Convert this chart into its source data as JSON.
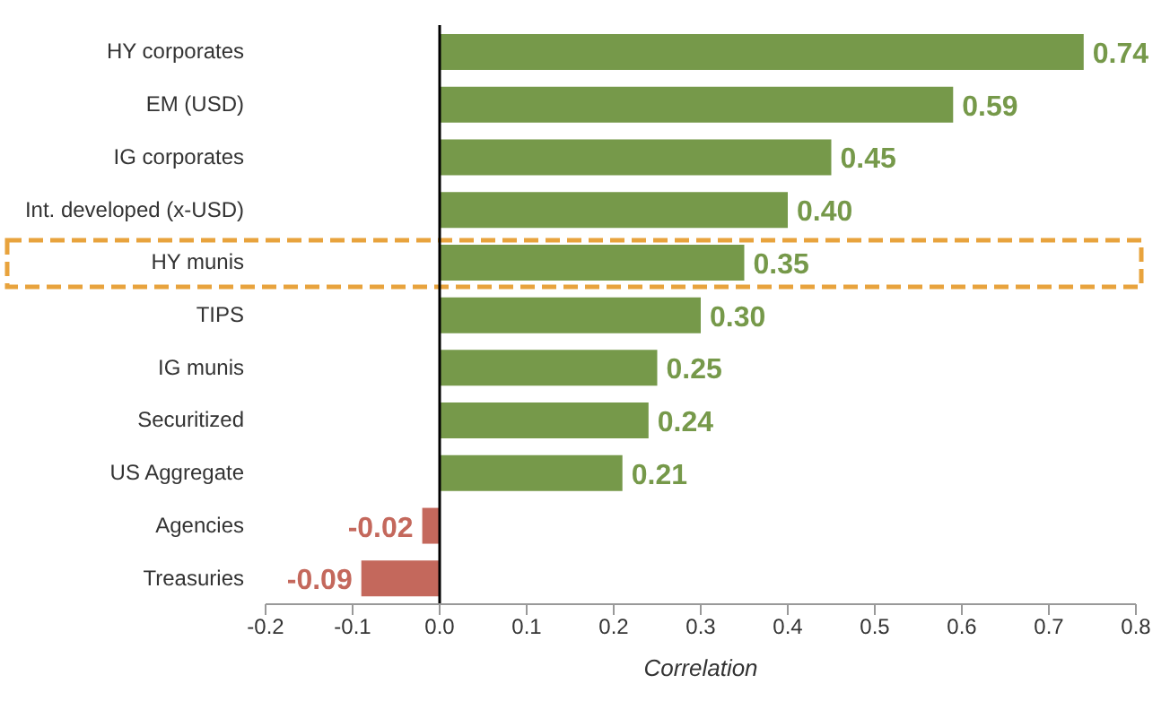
{
  "chart_data": {
    "type": "bar",
    "orientation": "horizontal",
    "xlabel": "Correlation",
    "categories": [
      "HY corporates",
      "EM (USD)",
      "IG corporates",
      "Int. developed (x-USD)",
      "HY munis",
      "TIPS",
      "IG munis",
      "Securitized",
      "US Aggregate",
      "Agencies",
      "Treasuries"
    ],
    "values": [
      0.74,
      0.59,
      0.45,
      0.4,
      0.35,
      0.3,
      0.25,
      0.24,
      0.21,
      -0.02,
      -0.09
    ],
    "value_labels": [
      "0.74",
      "0.59",
      "0.45",
      "0.40",
      "0.35",
      "0.30",
      "0.25",
      "0.24",
      "0.21",
      "-0.02",
      "-0.09"
    ],
    "colors": [
      "#76994a",
      "#76994a",
      "#76994a",
      "#76994a",
      "#76994a",
      "#76994a",
      "#76994a",
      "#76994a",
      "#76994a",
      "#c4685c",
      "#c4685c"
    ],
    "xlim": [
      -0.2,
      0.8
    ],
    "xticks": [
      -0.2,
      -0.1,
      {
        "value": 0,
        "label": "0.0"
      },
      0.1,
      0.2,
      0.3,
      0.4,
      0.5,
      0.6,
      0.7,
      0.8
    ],
    "ref_lines": [
      {
        "axis": "x",
        "value": 0,
        "color": "#000000"
      }
    ]
  }
}
